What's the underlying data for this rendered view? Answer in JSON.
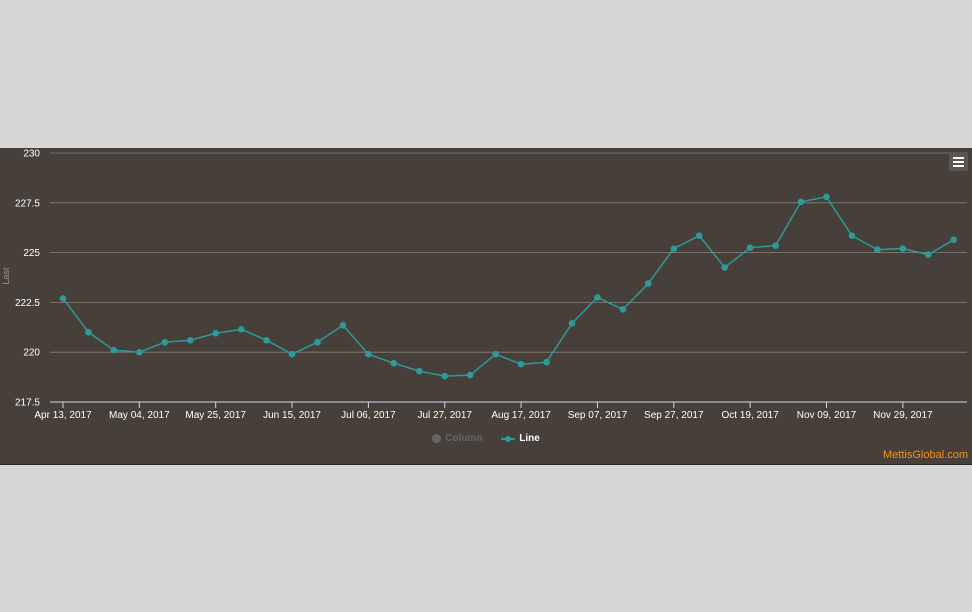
{
  "chart_data": {
    "type": "line",
    "ylabel": "Last",
    "ylim": [
      217.5,
      230
    ],
    "yticks": [
      "217.5",
      "220",
      "222.5",
      "225",
      "227.5",
      "230"
    ],
    "xtick_labels": [
      "Apr 13, 2017",
      "May 04, 2017",
      "May 25, 2017",
      "Jun 15, 2017",
      "Jul 06, 2017",
      "Jul 27, 2017",
      "Aug 17, 2017",
      "Sep 07, 2017",
      "Sep 27, 2017",
      "Oct 19, 2017",
      "Nov 09, 2017",
      "Nov 29, 2017"
    ],
    "grid": true,
    "legend_position": "bottom-center",
    "series": [
      {
        "name": "Line",
        "color": "#2f9a9a",
        "visible": true,
        "values": [
          222.7,
          221.0,
          220.1,
          220.0,
          220.5,
          220.6,
          220.95,
          221.15,
          220.6,
          219.9,
          220.5,
          221.35,
          219.9,
          219.45,
          219.05,
          218.8,
          218.85,
          219.9,
          219.4,
          219.5,
          221.45,
          222.75,
          222.15,
          223.45,
          225.2,
          225.85,
          224.25,
          225.25,
          225.35,
          227.55,
          227.8,
          225.85,
          225.15,
          225.2,
          224.9,
          225.65
        ]
      },
      {
        "name": "Column",
        "color": "#666666",
        "visible": false,
        "values": []
      }
    ]
  },
  "legend": {
    "column_label": "Column",
    "line_label": "Line"
  },
  "credit": "MettisGlobal.com",
  "menu_icon": "hamburger-icon"
}
